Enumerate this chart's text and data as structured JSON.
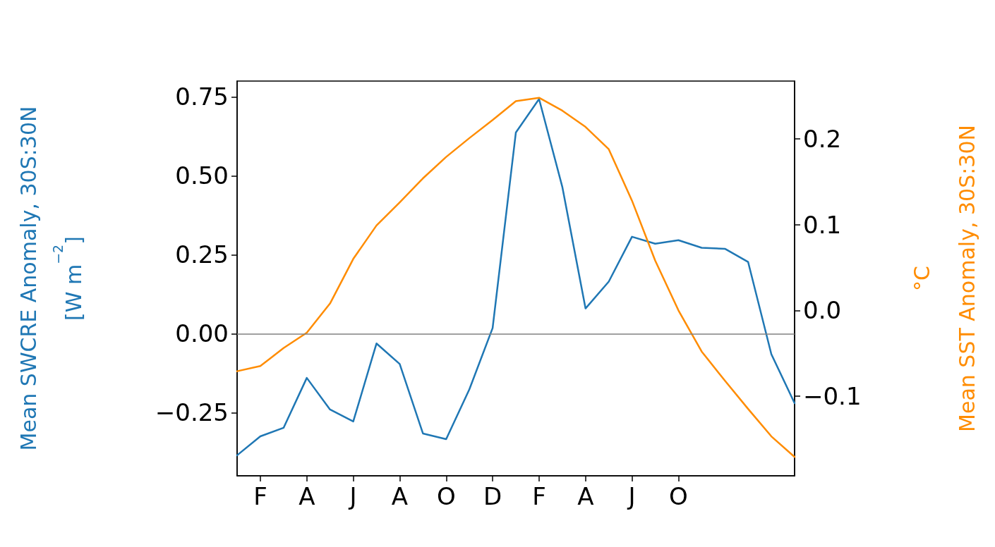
{
  "chart_data": {
    "type": "line",
    "ylabel": "Mean SWCRE Anomaly, 30S:30N\n[W m$^{−2}$]",
    "y2label": "°C\nMean SST Anomaly, 30S:30N",
    "categories": [
      null,
      "F",
      null,
      "A",
      null,
      "J",
      null,
      "A",
      null,
      "O",
      null,
      "D",
      null,
      "F",
      null,
      "A",
      null,
      "J",
      null,
      "O",
      null,
      null,
      null,
      null,
      null
    ],
    "series": [
      {
        "color": "#1f77b4",
        "values": [
          -0.385,
          -0.325,
          -0.298,
          -0.14,
          -0.24,
          -0.278,
          -0.031,
          -0.096,
          -0.316,
          -0.334,
          -0.176,
          0.018,
          0.637,
          0.743,
          0.465,
          0.08,
          0.165,
          0.307,
          0.285,
          0.296,
          0.272,
          0.269,
          0.227,
          -0.065,
          -0.22
        ]
      },
      {
        "color": "#ff8c00",
        "axis": "y2",
        "values": [
          -0.071,
          -0.065,
          -0.044,
          -0.026,
          0.008,
          0.06,
          0.099,
          0.126,
          0.154,
          0.179,
          0.201,
          0.222,
          0.244,
          0.248,
          0.233,
          0.214,
          0.188,
          0.128,
          0.058,
          0.0,
          -0.048,
          -0.082,
          -0.115,
          -0.147,
          -0.171
        ]
      }
    ],
    "ylim": [
      -0.45,
      0.8
    ],
    "yticks": [
      {
        "value": -0.25,
        "label": "−0.25"
      },
      {
        "value": 0,
        "label": "0.00"
      },
      {
        "value": 0.25,
        "label": "0.25"
      },
      {
        "value": 0.5,
        "label": "0.50"
      },
      {
        "value": 0.75,
        "label": "0.75"
      }
    ],
    "y2lim": [
      -0.193,
      0.2675
    ],
    "y2ticks": [
      {
        "value": -0.1,
        "label": "−0.1"
      },
      {
        "value": 0,
        "label": "0.0"
      },
      {
        "value": 0.1,
        "label": "0.1"
      },
      {
        "value": 0.2,
        "label": "0.2"
      }
    ],
    "ref_lines": [
      {
        "axis": "y",
        "value": 0,
        "color": "#808080"
      }
    ],
    "grid": false,
    "marker": "none",
    "line_style": "solid"
  }
}
